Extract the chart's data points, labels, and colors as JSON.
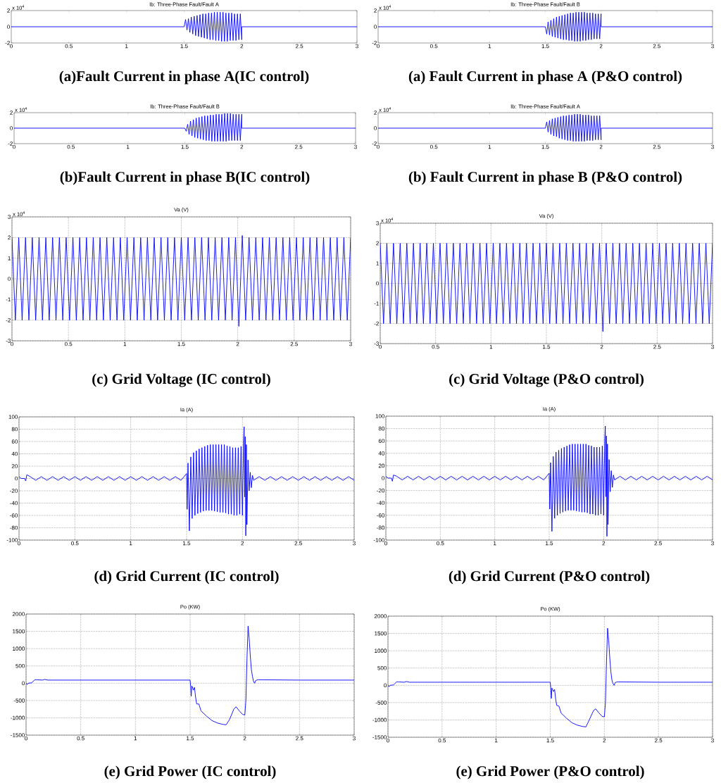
{
  "chart_data": [
    {
      "type": "line",
      "title": "Ib: Three-Phase Fault/Fault A",
      "annotations": [
        "(a)Fault Current in phase A(IC control)",
        "x 10$^{4}$"
      ],
      "xlim": [
        0,
        3
      ],
      "ylim": [
        -2,
        2
      ],
      "xticks": [
        0,
        0.5,
        1,
        1.5,
        2,
        2.5,
        3
      ],
      "yticks": [
        -2,
        0,
        2
      ],
      "x": [
        0,
        1.5,
        1.5125,
        1.525,
        1.5375,
        1.55,
        1.5625,
        1.575,
        1.5875,
        1.6,
        1.6125,
        1.625,
        1.6375,
        1.65,
        1.6625,
        1.675,
        1.6875,
        1.7,
        1.7125,
        1.725,
        1.7375,
        1.75,
        1.7625,
        1.775,
        1.7875,
        1.8,
        1.8125,
        1.825,
        1.8375,
        1.85,
        1.8625,
        1.875,
        1.8875,
        1.9,
        1.9125,
        1.925,
        1.9375,
        1.95,
        1.9625,
        1.975,
        1.9875,
        2,
        2,
        3
      ],
      "series": [
        {
          "color": "#0000ff",
          "values": [
            0,
            0,
            0.9,
            -0.4,
            1.0,
            -0.7,
            1.2,
            -0.9,
            1.3,
            -1.1,
            1.4,
            -1.2,
            1.5,
            -1.3,
            1.6,
            -1.4,
            1.6,
            -1.5,
            1.7,
            -1.6,
            1.7,
            -1.6,
            1.8,
            -1.7,
            1.8,
            -1.7,
            1.8,
            -1.8,
            1.8,
            -1.8,
            1.7,
            -1.8,
            1.7,
            -1.7,
            1.7,
            -1.7,
            1.6,
            -1.7,
            1.6,
            -1.6,
            1.6,
            -1.6,
            0,
            0
          ]
        }
      ]
    },
    {
      "type": "line",
      "title": "Ib: Three-Phase Fault/Fault B",
      "annotations": [
        "(a) Fault Current in phase A (P&O control)",
        "x 10$^{4}$"
      ],
      "xlim": [
        0,
        3
      ],
      "ylim": [
        -2,
        2
      ],
      "xticks": [
        0,
        0.5,
        1,
        1.5,
        2,
        2.5,
        3
      ],
      "yticks": [
        -2,
        0,
        2
      ],
      "x": [
        0,
        1.5,
        1.5125,
        1.525,
        1.5375,
        1.55,
        1.5625,
        1.575,
        1.5875,
        1.6,
        1.6125,
        1.625,
        1.6375,
        1.65,
        1.6625,
        1.675,
        1.6875,
        1.7,
        1.7125,
        1.725,
        1.7375,
        1.75,
        1.7625,
        1.775,
        1.7875,
        1.8,
        1.8125,
        1.825,
        1.8375,
        1.85,
        1.8625,
        1.875,
        1.8875,
        1.9,
        1.9125,
        1.925,
        1.9375,
        1.95,
        1.9625,
        1.975,
        1.9875,
        2,
        2,
        3
      ],
      "series": [
        {
          "color": "#0000ff",
          "values": [
            0,
            0,
            -0.9,
            0.6,
            -1.0,
            0.8,
            -1.2,
            1.0,
            -1.3,
            1.2,
            -1.4,
            1.3,
            -1.5,
            1.4,
            -1.6,
            1.5,
            -1.6,
            1.6,
            -1.7,
            1.7,
            -1.7,
            1.7,
            -1.8,
            1.8,
            -1.8,
            1.8,
            -1.8,
            1.8,
            -1.7,
            1.8,
            -1.7,
            1.7,
            -1.6,
            1.7,
            -1.6,
            1.7,
            -1.5,
            1.6,
            -1.5,
            1.6,
            -1.5,
            1.6,
            0,
            0
          ]
        }
      ]
    },
    {
      "type": "line",
      "title": "Ib: Three-Phase Fault/Fault B",
      "annotations": [
        "(b)Fault Current in phase B(IC control)",
        "x 10$^{4}$"
      ],
      "xlim": [
        0,
        3
      ],
      "ylim": [
        -2,
        2
      ],
      "xticks": [
        0,
        0.5,
        1,
        1.5,
        2,
        2.5,
        3
      ],
      "yticks": [
        -2,
        0,
        2
      ],
      "x": [
        0,
        1.5,
        1.5125,
        1.525,
        1.5375,
        1.55,
        1.5625,
        1.575,
        1.5875,
        1.6,
        1.6125,
        1.625,
        1.6375,
        1.65,
        1.6625,
        1.675,
        1.6875,
        1.7,
        1.7125,
        1.725,
        1.7375,
        1.75,
        1.7625,
        1.775,
        1.7875,
        1.8,
        1.8125,
        1.825,
        1.8375,
        1.85,
        1.8625,
        1.875,
        1.8875,
        1.9,
        1.9125,
        1.925,
        1.9375,
        1.95,
        1.9625,
        1.975,
        1.9875,
        2,
        2,
        3
      ],
      "series": [
        {
          "color": "#0000ff",
          "values": [
            0,
            0,
            -0.4,
            0.5,
            -0.8,
            0.9,
            -1.0,
            1.1,
            -1.2,
            1.3,
            -1.3,
            1.4,
            -1.4,
            1.5,
            -1.5,
            1.6,
            -1.6,
            1.6,
            -1.6,
            1.7,
            -1.7,
            1.7,
            -1.7,
            1.8,
            -1.7,
            1.8,
            -1.7,
            1.8,
            -1.7,
            1.9,
            -1.7,
            1.9,
            -1.6,
            1.9,
            -1.6,
            1.8,
            -1.6,
            1.8,
            -1.6,
            1.8,
            -1.6,
            1.8,
            0,
            0
          ]
        }
      ]
    },
    {
      "type": "line",
      "title": "Ib: Three-Phase Fault/Fault A",
      "annotations": [
        "(b) Fault Current in phase B (P&O control)",
        "x 10$^{4}$"
      ],
      "xlim": [
        0,
        3
      ],
      "ylim": [
        -2,
        2
      ],
      "xticks": [
        0,
        0.5,
        1,
        1.5,
        2,
        2.5,
        3
      ],
      "yticks": [
        -2,
        0,
        2
      ],
      "x": [
        0,
        1.5,
        1.5125,
        1.525,
        1.5375,
        1.55,
        1.5625,
        1.575,
        1.5875,
        1.6,
        1.6125,
        1.625,
        1.6375,
        1.65,
        1.6625,
        1.675,
        1.6875,
        1.7,
        1.7125,
        1.725,
        1.7375,
        1.75,
        1.7625,
        1.775,
        1.7875,
        1.8,
        1.8125,
        1.825,
        1.8375,
        1.85,
        1.8625,
        1.875,
        1.8875,
        1.9,
        1.9125,
        1.925,
        1.9375,
        1.95,
        1.9625,
        1.975,
        1.9875,
        2,
        2,
        3
      ],
      "series": [
        {
          "color": "#0000ff",
          "values": [
            0,
            0,
            0.8,
            -0.5,
            1.0,
            -0.8,
            1.2,
            -1.0,
            1.3,
            -1.1,
            1.4,
            -1.3,
            1.5,
            -1.4,
            1.6,
            -1.5,
            1.6,
            -1.6,
            1.7,
            -1.6,
            1.7,
            -1.7,
            1.8,
            -1.7,
            1.8,
            -1.7,
            1.8,
            -1.7,
            1.7,
            -1.7,
            1.7,
            -1.6,
            1.7,
            -1.6,
            1.6,
            -1.6,
            1.6,
            -1.5,
            1.6,
            -1.5,
            1.6,
            -1.5,
            0,
            0
          ]
        }
      ]
    },
    {
      "type": "line",
      "title": "Va (V)",
      "annotations": [
        "(c) Grid Voltage (IC control)",
        "x 10$^{4}$"
      ],
      "grid": true,
      "xlim": [
        0,
        3
      ],
      "ylim": [
        -3,
        3
      ],
      "xticks": [
        0,
        0.5,
        1,
        1.5,
        2,
        2.5,
        3
      ],
      "yticks": [
        -3,
        -2,
        -1,
        0,
        1,
        2,
        3
      ],
      "x": [
        0,
        0.03,
        0.06,
        0.09,
        0.12,
        0.15,
        0.18,
        0.21,
        0.24,
        0.27,
        0.3,
        0.33,
        0.36,
        0.39,
        0.42,
        0.45,
        0.48,
        0.51,
        0.54,
        0.57,
        0.6,
        0.63,
        0.66,
        0.69,
        0.72,
        0.75,
        0.78,
        0.81,
        0.84,
        0.87,
        0.9,
        0.93,
        0.96,
        0.99,
        1.02,
        1.05,
        1.08,
        1.11,
        1.14,
        1.17,
        1.2,
        1.23,
        1.26,
        1.29,
        1.32,
        1.35,
        1.38,
        1.41,
        1.44,
        1.47,
        1.5,
        1.53,
        1.56,
        1.59,
        1.62,
        1.65,
        1.68,
        1.71,
        1.74,
        1.77,
        1.8,
        1.83,
        1.86,
        1.89,
        1.92,
        1.95,
        1.98,
        2.01,
        2.04,
        2.07,
        2.1,
        2.13,
        2.16,
        2.19,
        2.22,
        2.25,
        2.28,
        2.31,
        2.34,
        2.37,
        2.4,
        2.43,
        2.46,
        2.49,
        2.52,
        2.55,
        2.58,
        2.61,
        2.64,
        2.67,
        2.7,
        2.73,
        2.76,
        2.79,
        2.82,
        2.85,
        2.88,
        2.91,
        2.94,
        2.97,
        3
      ],
      "series": [
        {
          "color": "#0000ff",
          "values": [
            2,
            -2,
            2,
            -2,
            2,
            -2,
            2,
            -2,
            2,
            -2,
            2,
            -2,
            2,
            -2,
            2,
            -2,
            2,
            -2,
            2,
            -2,
            2,
            -2,
            2,
            -2,
            2,
            -2,
            2,
            -2,
            2,
            -2,
            2,
            -2,
            2,
            -2,
            2,
            -2,
            2,
            -2,
            2,
            -2,
            2,
            -2,
            2,
            -2,
            2,
            -2,
            2,
            -2,
            2,
            -2,
            2,
            -2,
            2,
            -2,
            2,
            -2,
            2,
            -2,
            2,
            -2,
            2,
            -2,
            2,
            -2,
            2,
            -2,
            2,
            -2.3,
            2.1,
            -2,
            2,
            -2,
            2,
            -2,
            2,
            -2,
            2,
            -2,
            2,
            -2,
            2,
            -2,
            2,
            -2,
            2,
            -2,
            2,
            -2,
            2,
            -2,
            2,
            -2,
            2,
            -2,
            2,
            -2,
            2,
            -2,
            2,
            -2,
            2
          ]
        }
      ]
    },
    {
      "type": "line",
      "title": "Va (V)",
      "annotations": [
        "(c) Grid Voltage (P&O control)",
        "x 10$^{4}$"
      ],
      "grid": true,
      "xlim": [
        0,
        3
      ],
      "ylim": [
        -3,
        3
      ],
      "xticks": [
        0,
        0.5,
        1,
        1.5,
        2,
        2.5,
        3
      ],
      "yticks": [
        -3,
        -2,
        -1,
        0,
        1,
        2,
        3
      ],
      "x": [
        0,
        0.03,
        0.06,
        0.09,
        0.12,
        0.15,
        0.18,
        0.21,
        0.24,
        0.27,
        0.3,
        0.33,
        0.36,
        0.39,
        0.42,
        0.45,
        0.48,
        0.51,
        0.54,
        0.57,
        0.6,
        0.63,
        0.66,
        0.69,
        0.72,
        0.75,
        0.78,
        0.81,
        0.84,
        0.87,
        0.9,
        0.93,
        0.96,
        0.99,
        1.02,
        1.05,
        1.08,
        1.11,
        1.14,
        1.17,
        1.2,
        1.23,
        1.26,
        1.29,
        1.32,
        1.35,
        1.38,
        1.41,
        1.44,
        1.47,
        1.5,
        1.53,
        1.56,
        1.59,
        1.62,
        1.65,
        1.68,
        1.71,
        1.74,
        1.77,
        1.8,
        1.83,
        1.86,
        1.89,
        1.92,
        1.95,
        1.98,
        2.01,
        2.04,
        2.07,
        2.1,
        2.13,
        2.16,
        2.19,
        2.22,
        2.25,
        2.28,
        2.31,
        2.34,
        2.37,
        2.4,
        2.43,
        2.46,
        2.49,
        2.52,
        2.55,
        2.58,
        2.61,
        2.64,
        2.67,
        2.7,
        2.73,
        2.76,
        2.79,
        2.82,
        2.85,
        2.88,
        2.91,
        2.94,
        2.97,
        3
      ],
      "series": [
        {
          "color": "#0000ff",
          "values": [
            2,
            -2,
            2,
            -2,
            2,
            -2,
            2,
            -2,
            2,
            -2,
            2,
            -2,
            2,
            -2,
            2,
            -2,
            2,
            -2,
            2,
            -2,
            2,
            -2,
            2,
            -2,
            2,
            -2,
            2,
            -2,
            2,
            -2,
            2,
            -2,
            2,
            -2,
            2,
            -2,
            2,
            -2,
            2,
            -2,
            2,
            -2,
            2,
            -2,
            2,
            -2,
            2,
            -2,
            2,
            -2,
            2,
            -2,
            2,
            -2,
            2,
            -2,
            2,
            -2,
            2,
            -2,
            2,
            -2,
            2,
            -2,
            2,
            -2,
            2,
            -2.4,
            2,
            -2,
            2,
            -2,
            2,
            -2,
            2,
            -2,
            2,
            -2,
            2,
            -2,
            2,
            -2,
            2,
            -2,
            2,
            -2,
            2,
            -2,
            2,
            -2,
            2,
            -2,
            2,
            -2,
            2,
            -2,
            2,
            -2,
            2,
            -2,
            2
          ]
        }
      ]
    },
    {
      "type": "line",
      "title": "Ia (A)",
      "annotations": [
        "(d) Grid Current (IC control)"
      ],
      "grid": true,
      "xlim": [
        0,
        3
      ],
      "ylim": [
        -100,
        100
      ],
      "xticks": [
        0,
        0.5,
        1,
        1.5,
        2,
        2.5,
        3
      ],
      "yticks": [
        -100,
        -80,
        -60,
        -40,
        -20,
        0,
        20,
        40,
        60,
        80,
        100
      ],
      "x": [
        0,
        0.02,
        0.05,
        0.06,
        0.07,
        0.1,
        0.15,
        0.2,
        0.25,
        0.3,
        0.35,
        0.4,
        0.45,
        0.5,
        0.55,
        0.6,
        0.65,
        0.7,
        0.75,
        0.8,
        0.85,
        0.9,
        0.95,
        1,
        1.05,
        1.1,
        1.15,
        1.2,
        1.25,
        1.3,
        1.35,
        1.4,
        1.45,
        1.5,
        1.505,
        1.5125,
        1.525,
        1.5375,
        1.55,
        1.5625,
        1.575,
        1.5875,
        1.6,
        1.6125,
        1.625,
        1.6375,
        1.65,
        1.6625,
        1.675,
        1.6875,
        1.7,
        1.7125,
        1.725,
        1.7375,
        1.75,
        1.7625,
        1.775,
        1.7875,
        1.8,
        1.8125,
        1.825,
        1.8375,
        1.85,
        1.8625,
        1.875,
        1.8875,
        1.9,
        1.9125,
        1.925,
        1.9375,
        1.95,
        1.9625,
        1.975,
        1.9875,
        2,
        2.01,
        2.015,
        2.02,
        2.025,
        2.03,
        2.035,
        2.04,
        2.05,
        2.06,
        2.07,
        2.08,
        2.09,
        2.1,
        2.15,
        2.2,
        2.25,
        2.3,
        2.35,
        2.4,
        2.45,
        2.5,
        2.55,
        2.6,
        2.65,
        2.7,
        2.75,
        2.8,
        2.85,
        2.9,
        2.95,
        3
      ],
      "series": [
        {
          "color": "#0000ff",
          "values": [
            3,
            0,
            0,
            -4,
            6,
            3,
            -3,
            3,
            -3,
            3,
            -3,
            3,
            -3,
            3,
            -3,
            3,
            -3,
            3,
            -3,
            3,
            -3,
            3,
            -3,
            3,
            -3,
            3,
            -3,
            3,
            -3,
            3,
            -3,
            3,
            -3,
            8,
            -50,
            25,
            -85,
            35,
            -65,
            42,
            -60,
            45,
            -57,
            48,
            -55,
            50,
            -53,
            52,
            -52,
            54,
            -52,
            55,
            -52,
            55,
            -53,
            55,
            -54,
            55,
            -55,
            55,
            -55,
            55,
            -56,
            53,
            -58,
            52,
            -58,
            50,
            -60,
            50,
            -60,
            50,
            -58,
            52,
            -60,
            60,
            84,
            -30,
            68,
            -93,
            55,
            -75,
            30,
            -20,
            10,
            -15,
            5,
            -3,
            3,
            -3,
            3,
            -3,
            3,
            -3,
            3,
            -3,
            3,
            -3,
            3,
            -3,
            3,
            -3,
            3,
            -3,
            3,
            -3
          ]
        }
      ]
    },
    {
      "type": "line",
      "title": "Ia (A)",
      "annotations": [
        "(d) Grid Current (P&O control)"
      ],
      "grid": true,
      "xlim": [
        0,
        3
      ],
      "ylim": [
        -100,
        100
      ],
      "xticks": [
        0,
        0.5,
        1,
        1.5,
        2,
        2.5,
        3
      ],
      "yticks": [
        -100,
        -80,
        -60,
        -40,
        -20,
        0,
        20,
        40,
        60,
        80,
        100
      ],
      "x": [
        0,
        0.02,
        0.05,
        0.06,
        0.07,
        0.1,
        0.15,
        0.2,
        0.25,
        0.3,
        0.35,
        0.4,
        0.45,
        0.5,
        0.55,
        0.6,
        0.65,
        0.7,
        0.75,
        0.8,
        0.85,
        0.9,
        0.95,
        1,
        1.05,
        1.1,
        1.15,
        1.2,
        1.25,
        1.3,
        1.35,
        1.4,
        1.45,
        1.5,
        1.505,
        1.5125,
        1.525,
        1.5375,
        1.55,
        1.5625,
        1.575,
        1.5875,
        1.6,
        1.6125,
        1.625,
        1.6375,
        1.65,
        1.6625,
        1.675,
        1.6875,
        1.7,
        1.7125,
        1.725,
        1.7375,
        1.75,
        1.7625,
        1.775,
        1.7875,
        1.8,
        1.8125,
        1.825,
        1.8375,
        1.85,
        1.8625,
        1.875,
        1.8875,
        1.9,
        1.9125,
        1.925,
        1.9375,
        1.95,
        1.9625,
        1.975,
        1.9875,
        2,
        2.01,
        2.015,
        2.02,
        2.025,
        2.03,
        2.035,
        2.04,
        2.05,
        2.06,
        2.07,
        2.08,
        2.09,
        2.1,
        2.15,
        2.2,
        2.25,
        2.3,
        2.35,
        2.4,
        2.45,
        2.5,
        2.55,
        2.6,
        2.65,
        2.7,
        2.75,
        2.8,
        2.85,
        2.9,
        2.95,
        3
      ],
      "series": [
        {
          "color": "#0000ff",
          "values": [
            3,
            0,
            0,
            -5,
            5,
            3,
            -3,
            3,
            -3,
            3,
            -3,
            3,
            -3,
            3,
            -3,
            3,
            -3,
            3,
            -3,
            3,
            -3,
            3,
            -3,
            3,
            -3,
            3,
            -3,
            3,
            -3,
            3,
            -3,
            3,
            -3,
            8,
            -50,
            25,
            -86,
            35,
            -65,
            42,
            -60,
            45,
            -57,
            48,
            -55,
            50,
            -53,
            52,
            -52,
            54,
            -52,
            55,
            -52,
            55,
            -53,
            55,
            -54,
            55,
            -55,
            55,
            -55,
            55,
            -56,
            53,
            -58,
            52,
            -58,
            50,
            -60,
            50,
            -60,
            50,
            -58,
            52,
            -60,
            60,
            84,
            -30,
            68,
            -94,
            55,
            -75,
            30,
            -22,
            12,
            -15,
            5,
            -3,
            3,
            -3,
            3,
            -3,
            3,
            -3,
            3,
            -3,
            3,
            -3,
            3,
            -3,
            3,
            -3,
            3,
            -3,
            3,
            -3
          ]
        }
      ]
    },
    {
      "type": "line",
      "title": "Po (KW)",
      "annotations": [
        "(e) Grid Power (IC control)"
      ],
      "grid": true,
      "xlim": [
        0,
        3
      ],
      "ylim": [
        -1500,
        2000
      ],
      "xticks": [
        0,
        0.5,
        1,
        1.5,
        2,
        2.5,
        3
      ],
      "yticks": [
        -1500,
        -1000,
        -500,
        0,
        500,
        1000,
        1500,
        2000
      ],
      "x": [
        0,
        0.01,
        0.02,
        0.05,
        0.08,
        0.1,
        0.15,
        0.17,
        0.2,
        0.5,
        1,
        1.5,
        1.505,
        1.51,
        1.515,
        1.52,
        1.53,
        1.54,
        1.55,
        1.56,
        1.58,
        1.6,
        1.65,
        1.7,
        1.75,
        1.8,
        1.83,
        1.86,
        1.9,
        1.92,
        1.95,
        1.98,
        2,
        2.01,
        2.02,
        2.03,
        2.04,
        2.05,
        2.06,
        2.07,
        2.08,
        2.09,
        2.1,
        2.12,
        2.5,
        3
      ],
      "series": [
        {
          "color": "#0000ff",
          "values": [
            0,
            -40,
            0,
            10,
            100,
            100,
            90,
            110,
            90,
            90,
            90,
            90,
            -100,
            -380,
            -80,
            -100,
            -200,
            -120,
            -400,
            -600,
            -600,
            -800,
            -950,
            -1080,
            -1150,
            -1190,
            -1200,
            -1050,
            -750,
            -680,
            -800,
            -900,
            -920,
            -500,
            700,
            1650,
            1300,
            800,
            400,
            200,
            50,
            0,
            80,
            100,
            90,
            90
          ]
        }
      ]
    },
    {
      "type": "line",
      "title": "Po (KW)",
      "annotations": [
        "(e) Grid Power (P&O control)"
      ],
      "grid": true,
      "xlim": [
        0,
        3
      ],
      "ylim": [
        -1500,
        2000
      ],
      "xticks": [
        0,
        0.5,
        1,
        1.5,
        2,
        2.5,
        3
      ],
      "yticks": [
        -1500,
        -1000,
        -500,
        0,
        500,
        1000,
        1500,
        2000
      ],
      "x": [
        0,
        0.01,
        0.02,
        0.05,
        0.08,
        0.1,
        0.15,
        0.17,
        0.2,
        0.5,
        1,
        1.5,
        1.505,
        1.51,
        1.515,
        1.52,
        1.53,
        1.54,
        1.55,
        1.56,
        1.58,
        1.6,
        1.65,
        1.7,
        1.75,
        1.8,
        1.83,
        1.86,
        1.9,
        1.92,
        1.95,
        1.98,
        2,
        2.01,
        2.02,
        2.03,
        2.04,
        2.05,
        2.06,
        2.07,
        2.08,
        2.09,
        2.1,
        2.12,
        2.5,
        3
      ],
      "series": [
        {
          "color": "#0000ff",
          "values": [
            0,
            -40,
            0,
            10,
            100,
            100,
            90,
            110,
            90,
            90,
            90,
            90,
            -100,
            -380,
            -80,
            -100,
            -180,
            -120,
            -400,
            -580,
            -600,
            -800,
            -950,
            -1080,
            -1150,
            -1190,
            -1200,
            -1000,
            -730,
            -680,
            -800,
            -900,
            -910,
            -500,
            700,
            1650,
            1300,
            800,
            400,
            150,
            50,
            0,
            80,
            100,
            90,
            90
          ]
        }
      ]
    }
  ]
}
